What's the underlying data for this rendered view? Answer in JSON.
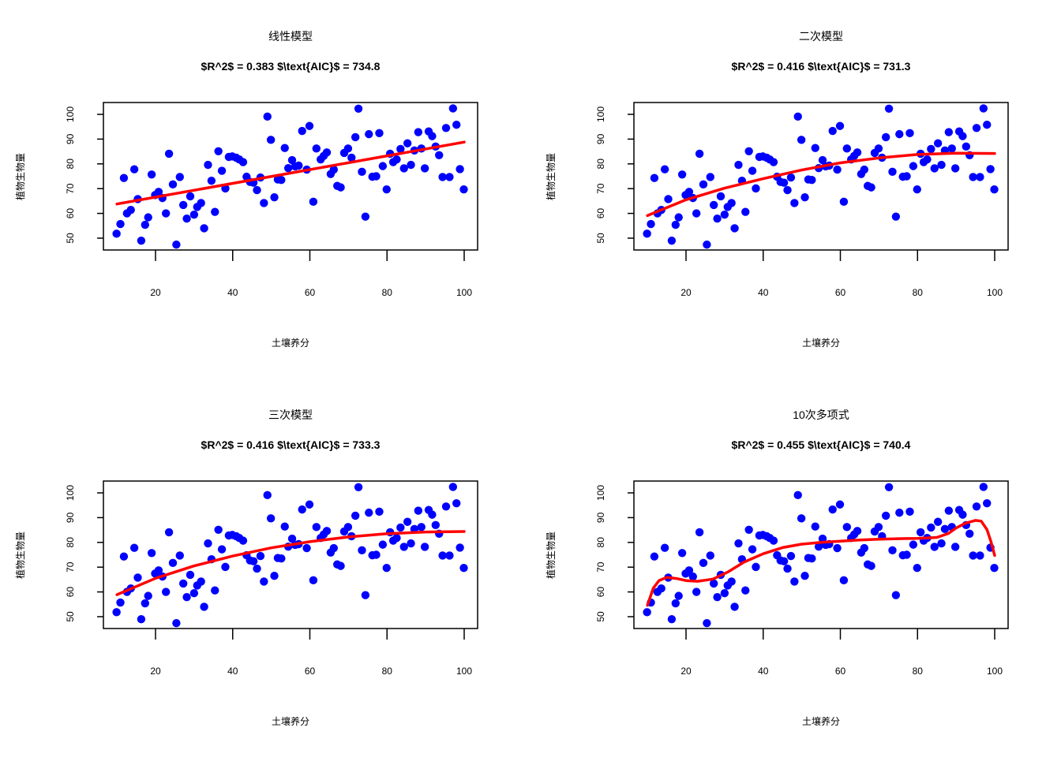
{
  "chart_data": [
    {
      "type": "scatter",
      "title": "线性模型",
      "subtitle": "$R^2$ = 0.383 $\\text{AIC}$ = 734.8",
      "xlabel": "土壤养分",
      "ylabel": "植物生物量",
      "xticks": [
        20,
        40,
        60,
        80,
        100
      ],
      "yticks": [
        50,
        60,
        70,
        80,
        90,
        100
      ],
      "fit": {
        "x": [
          10,
          100
        ],
        "y": [
          63.8,
          88.8
        ]
      }
    },
    {
      "type": "scatter",
      "title": "二次模型",
      "subtitle": "$R^2$ = 0.416 $\\text{AIC}$ = 731.3",
      "xlabel": "土壤养分",
      "ylabel": "植物生物量",
      "xticks": [
        20,
        40,
        60,
        80,
        100
      ],
      "yticks": [
        50,
        60,
        70,
        80,
        90,
        100
      ],
      "fit": {
        "x": [
          10,
          20,
          30,
          40,
          50,
          60,
          70,
          80,
          90,
          100
        ],
        "y": [
          59.1,
          65.5,
          70.2,
          74.0,
          77.5,
          80.4,
          82.4,
          83.8,
          84.3,
          84.2
        ]
      }
    },
    {
      "type": "scatter",
      "title": "三次模型",
      "subtitle": "$R^2$ = 0.416 $\\text{AIC}$ = 733.3",
      "xlabel": "土壤养分",
      "ylabel": "植物生物量",
      "xticks": [
        20,
        40,
        60,
        80,
        100
      ],
      "yticks": [
        50,
        60,
        70,
        80,
        90,
        100
      ],
      "fit": {
        "x": [
          10,
          20,
          30,
          40,
          50,
          60,
          70,
          80,
          90,
          100
        ],
        "y": [
          58.9,
          65.5,
          70.5,
          74.5,
          77.8,
          80.3,
          82.2,
          83.5,
          84.2,
          84.4
        ]
      }
    },
    {
      "type": "scatter",
      "title": "10次多项式",
      "subtitle": "$R^2$ = 0.455 $\\text{AIC}$ = 740.4",
      "xlabel": "土壤养分",
      "ylabel": "植物生物量",
      "xticks": [
        20,
        40,
        60,
        80,
        100
      ],
      "yticks": [
        50,
        60,
        70,
        80,
        90,
        100
      ],
      "fit": {
        "x": [
          10,
          11.5,
          13,
          15,
          17.5,
          20,
          23,
          27,
          31,
          35,
          40,
          45,
          50,
          55,
          60,
          65,
          70,
          75,
          80,
          85,
          88,
          90,
          92.5,
          95,
          96.5,
          98,
          99,
          100
        ],
        "y": [
          54.6,
          61.5,
          64.6,
          65.9,
          65.4,
          64.6,
          64.3,
          65.2,
          68.2,
          72.0,
          75.4,
          77.9,
          79.3,
          80.0,
          80.5,
          81.0,
          81.3,
          81.5,
          81.6,
          82.0,
          83.6,
          85.8,
          87.8,
          88.9,
          88.6,
          85.2,
          80.5,
          74.7
        ]
      }
    }
  ],
  "points": {
    "x": [
      9.9,
      10.9,
      11.8,
      12.6,
      13.6,
      14.5,
      15.4,
      16.3,
      17.3,
      18.1,
      19.0,
      19.9,
      20.8,
      21.8,
      22.7,
      23.5,
      24.5,
      25.4,
      26.3,
      27.2,
      28.1,
      29.0,
      30.0,
      30.8,
      31.8,
      32.6,
      33.6,
      34.5,
      35.4,
      36.3,
      37.2,
      38.1,
      39.0,
      39.9,
      40.9,
      41.7,
      42.7,
      43.6,
      44.5,
      45.4,
      46.3,
      47.2,
      48.1,
      49.0,
      49.9,
      50.8,
      51.7,
      52.6,
      53.5,
      54.4,
      55.4,
      56.2,
      57.1,
      58.0,
      59.2,
      59.9,
      60.9,
      61.7,
      62.8,
      63.6,
      64.4,
      65.4,
      66.2,
      67.1,
      68.0,
      68.9,
      69.9,
      70.8,
      71.8,
      72.6,
      73.5,
      74.4,
      75.3,
      76.2,
      77.2,
      78.0,
      78.9,
      79.9,
      80.8,
      81.6,
      82.5,
      83.5,
      84.4,
      85.3,
      86.2,
      87.1,
      88.1,
      88.9,
      89.8,
      90.8,
      91.7,
      92.6,
      93.5,
      94.4,
      95.3,
      96.2,
      97.1,
      98.0,
      98.9,
      99.9
    ],
    "y": [
      51.8,
      55.7,
      74.3,
      60.0,
      61.4,
      77.8,
      65.8,
      49.0,
      55.4,
      58.4,
      75.7,
      67.4,
      68.7,
      66.2,
      60.0,
      84.1,
      71.7,
      47.4,
      74.7,
      63.4,
      57.9,
      66.9,
      59.5,
      62.6,
      64.2,
      54.0,
      79.6,
      73.2,
      60.6,
      85.1,
      77.2,
      70.1,
      82.8,
      83.0,
      82.5,
      81.8,
      80.7,
      74.8,
      72.7,
      72.4,
      69.4,
      74.5,
      64.2,
      99.1,
      89.7,
      66.5,
      73.7,
      73.5,
      86.4,
      78.3,
      81.5,
      79.0,
      79.3,
      93.3,
      77.7,
      95.3,
      64.7,
      86.2,
      81.8,
      83.2,
      84.6,
      75.9,
      77.7,
      71.1,
      70.5,
      84.4,
      86.2,
      82.5,
      90.8,
      102.3,
      76.8,
      58.7,
      92.0,
      74.8,
      75.0,
      92.4,
      79.1,
      69.7,
      84.1,
      80.7,
      81.8,
      86.0,
      78.2,
      88.3,
      79.6,
      85.4,
      92.8,
      86.2,
      78.2,
      93.1,
      91.2,
      87.0,
      83.5,
      74.7,
      94.5,
      74.7,
      102.4,
      95.8,
      77.9,
      69.7
    ]
  },
  "colors": {
    "points": "#0000ff",
    "fit": "#ff0000"
  },
  "xlim": [
    6.4,
    103.6
  ],
  "ylim": [
    46.2,
    105.6
  ]
}
